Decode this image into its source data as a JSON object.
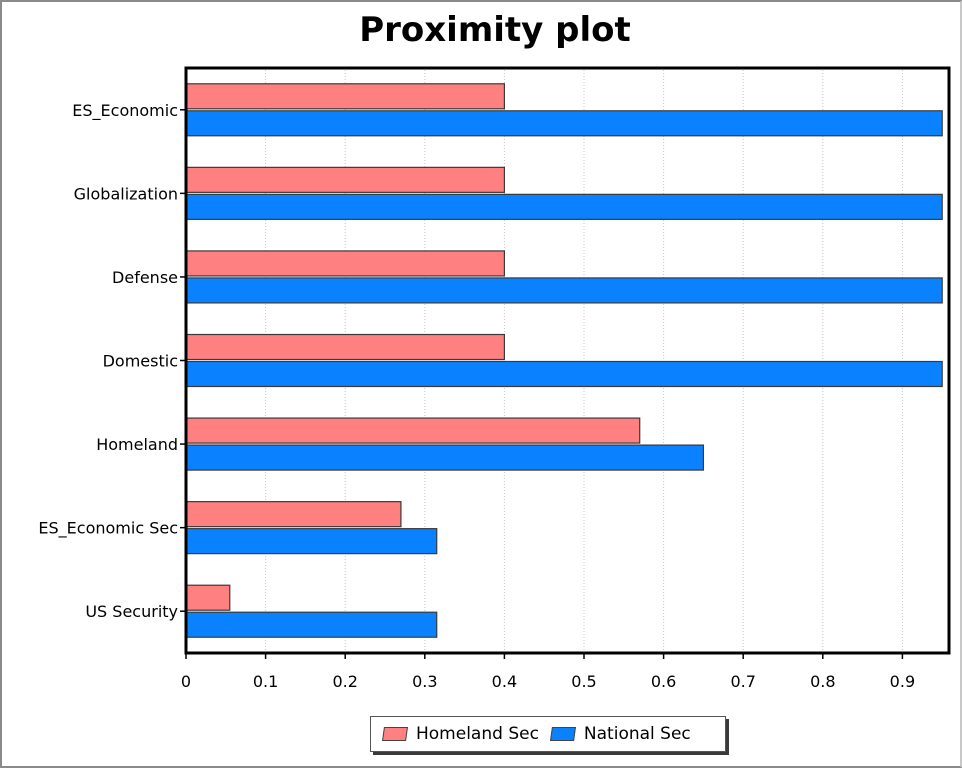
{
  "chart_data": {
    "type": "bar",
    "orientation": "horizontal",
    "title": "Proximity plot",
    "categories": [
      "ES_Economic",
      "Globalization",
      "Defense",
      "Domestic",
      "Homeland",
      "ES_Economic Sec",
      "US Security"
    ],
    "series": [
      {
        "name": "Homeland Sec",
        "color": "#ff8080",
        "values": [
          0.4,
          0.4,
          0.4,
          0.4,
          0.57,
          0.27,
          0.055
        ]
      },
      {
        "name": "National Sec",
        "color": "#0a82ff",
        "values": [
          0.95,
          0.95,
          0.95,
          0.95,
          0.65,
          0.315,
          0.315
        ]
      }
    ],
    "xlim": [
      0,
      0.96
    ],
    "xticks": [
      "0",
      "0.1",
      "0.2",
      "0.3",
      "0.4",
      "0.5",
      "0.6",
      "0.7",
      "0.8",
      "0.9"
    ],
    "grid": "vertical dotted",
    "legend_position": "bottom"
  }
}
